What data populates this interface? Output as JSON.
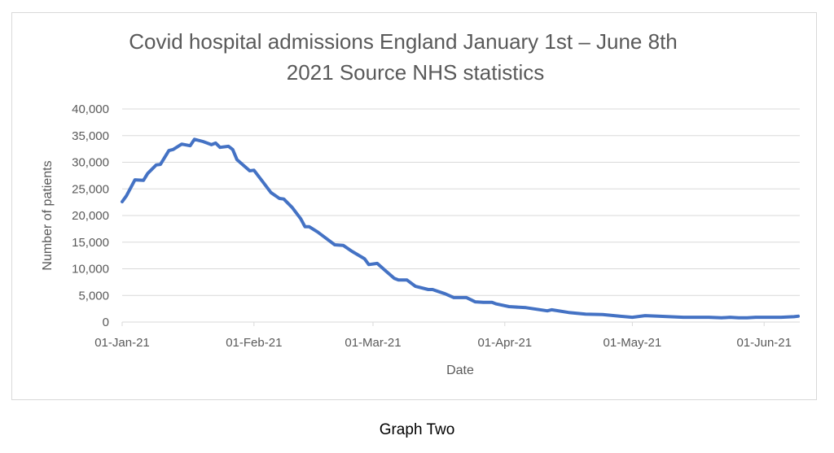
{
  "caption": "Graph Two",
  "chart_data": {
    "type": "line",
    "title": [
      "Covid hospital admissions England January 1st – June 8th",
      "2021 Source NHS statistics"
    ],
    "xlabel": "Date",
    "ylabel": "Number of patients",
    "ylim": [
      0,
      40000
    ],
    "yticks": [
      0,
      5000,
      10000,
      15000,
      20000,
      25000,
      30000,
      35000,
      40000
    ],
    "ytick_labels": [
      "0",
      "5,000",
      "10,000",
      "15,000",
      "20,000",
      "25,000",
      "30,000",
      "35,000",
      "40,000"
    ],
    "xlim_days": [
      0,
      159
    ],
    "x_start_date": "2021-01-01",
    "xticks_days": [
      0,
      31,
      59,
      90,
      120,
      151
    ],
    "xtick_labels": [
      "01-Jan-21",
      "01-Feb-21",
      "01-Mar-21",
      "01-Apr-21",
      "01-May-21",
      "01-Jun-21"
    ],
    "grid": true,
    "legend": "none",
    "series": [
      {
        "name": "Number of patients",
        "color": "#4472C4",
        "x_days": [
          0,
          1,
          3,
          5,
          6,
          8,
          9,
          11,
          12,
          14,
          16,
          17,
          19,
          21,
          22,
          23,
          25,
          26,
          27,
          30,
          31,
          33,
          35,
          37,
          38,
          40,
          42,
          43,
          44,
          46,
          48,
          50,
          52,
          54,
          57,
          58,
          60,
          62,
          64,
          65,
          67,
          69,
          72,
          73,
          76,
          78,
          81,
          83,
          85,
          87,
          88,
          91,
          95,
          100,
          101,
          105,
          109,
          113,
          117,
          120,
          123,
          126,
          132,
          138,
          141,
          143,
          145,
          147,
          149,
          155,
          158,
          159
        ],
        "values": [
          22600,
          23700,
          26700,
          26600,
          27900,
          29500,
          29600,
          32200,
          32400,
          33400,
          33100,
          34300,
          33900,
          33300,
          33600,
          32800,
          33000,
          32400,
          30500,
          28400,
          28500,
          26400,
          24300,
          23200,
          23100,
          21500,
          19400,
          17900,
          17900,
          16900,
          15700,
          14500,
          14400,
          13300,
          11900,
          10800,
          11000,
          9600,
          8200,
          7900,
          7900,
          6700,
          6100,
          6100,
          5300,
          4600,
          4600,
          3800,
          3700,
          3700,
          3400,
          2900,
          2700,
          2100,
          2300,
          1800,
          1500,
          1400,
          1100,
          900,
          1200,
          1100,
          900,
          900,
          800,
          900,
          800,
          800,
          900,
          900,
          1000,
          1100
        ]
      }
    ]
  }
}
